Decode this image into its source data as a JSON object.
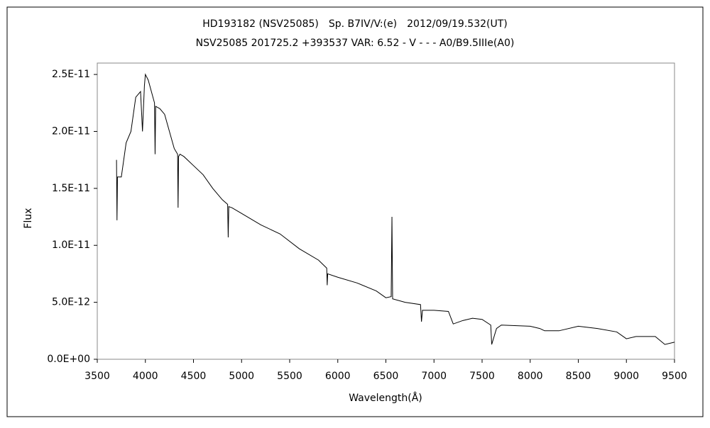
{
  "chart_data": {
    "type": "line",
    "title": "HD193182 (NSV25085)　Sp. B7IV/V:(e)　2012/09/19.532(UT)",
    "subtitle": "NSV25085 201725.2 +393537 VAR: 6.52 - V - - - A0/B9.5IIIe(A0)",
    "x_label": "Wavelength(Å)",
    "y_label": "Flux",
    "x": [
      3700,
      3705,
      3710,
      3750,
      3800,
      3850,
      3900,
      3950,
      3970,
      3990,
      4000,
      4030,
      4095,
      4101,
      4107,
      4150,
      4200,
      4250,
      4300,
      4335,
      4340,
      4345,
      4360,
      4400,
      4500,
      4600,
      4700,
      4800,
      4855,
      4861,
      4867,
      4900,
      5000,
      5200,
      5400,
      5600,
      5800,
      5885,
      5890,
      5895,
      6000,
      6200,
      6400,
      6500,
      6555,
      6563,
      6570,
      6700,
      6860,
      6870,
      6880,
      7000,
      7150,
      7200,
      7300,
      7400,
      7500,
      7590,
      7600,
      7650,
      7700,
      8000,
      8100,
      8150,
      8300,
      8500,
      8700,
      8900,
      9000,
      9100,
      9300,
      9400,
      9500
    ],
    "series": [
      {
        "name": "Flux",
        "color": "#000000",
        "values": [
          1.75e-11,
          1.22e-11,
          1.6e-11,
          1.6e-11,
          1.9e-11,
          2e-11,
          2.3e-11,
          2.35e-11,
          2e-11,
          2.4e-11,
          2.5e-11,
          2.45e-11,
          2.25e-11,
          1.8e-11,
          2.22e-11,
          2.2e-11,
          2.15e-11,
          2e-11,
          1.85e-11,
          1.8e-11,
          1.33e-11,
          1.78e-11,
          1.8e-11,
          1.78e-11,
          1.7e-11,
          1.62e-11,
          1.5e-11,
          1.4e-11,
          1.36e-11,
          1.07e-11,
          1.34e-11,
          1.33e-11,
          1.28e-11,
          1.18e-11,
          1.1e-11,
          9.7e-12,
          8.7e-12,
          8e-12,
          6.5e-12,
          7.5e-12,
          7.2e-12,
          6.7e-12,
          6e-12,
          5.4e-12,
          5.5e-12,
          1.25e-11,
          5.3e-12,
          5e-12,
          4.8e-12,
          3.3e-12,
          4.3e-12,
          4.3e-12,
          4.2e-12,
          3.1e-12,
          3.4e-12,
          3.6e-12,
          3.5e-12,
          3e-12,
          1.3e-12,
          2.7e-12,
          3e-12,
          2.9e-12,
          2.7e-12,
          2.5e-12,
          2.5e-12,
          2.9e-12,
          2.7e-12,
          2.4e-12,
          1.8e-12,
          2e-12,
          2e-12,
          1.3e-12,
          1.5e-12
        ]
      }
    ],
    "xlim": [
      3500,
      9500
    ],
    "xticks": [
      3500,
      4000,
      4500,
      5000,
      5500,
      6000,
      6500,
      7000,
      7500,
      8000,
      8500,
      9000,
      9500
    ],
    "ylim": [
      0,
      2.6e-11
    ],
    "yticks": [
      {
        "value": 0,
        "label": "0.0E+00"
      },
      {
        "value": 5e-12,
        "label": "5.0E-12"
      },
      {
        "value": 1e-11,
        "label": "1.0E-11"
      },
      {
        "value": 1.5e-11,
        "label": "1.5E-11"
      },
      {
        "value": 2e-11,
        "label": "2.0E-11"
      },
      {
        "value": 2.5e-11,
        "label": "2.5E-11"
      }
    ],
    "grid": false
  }
}
